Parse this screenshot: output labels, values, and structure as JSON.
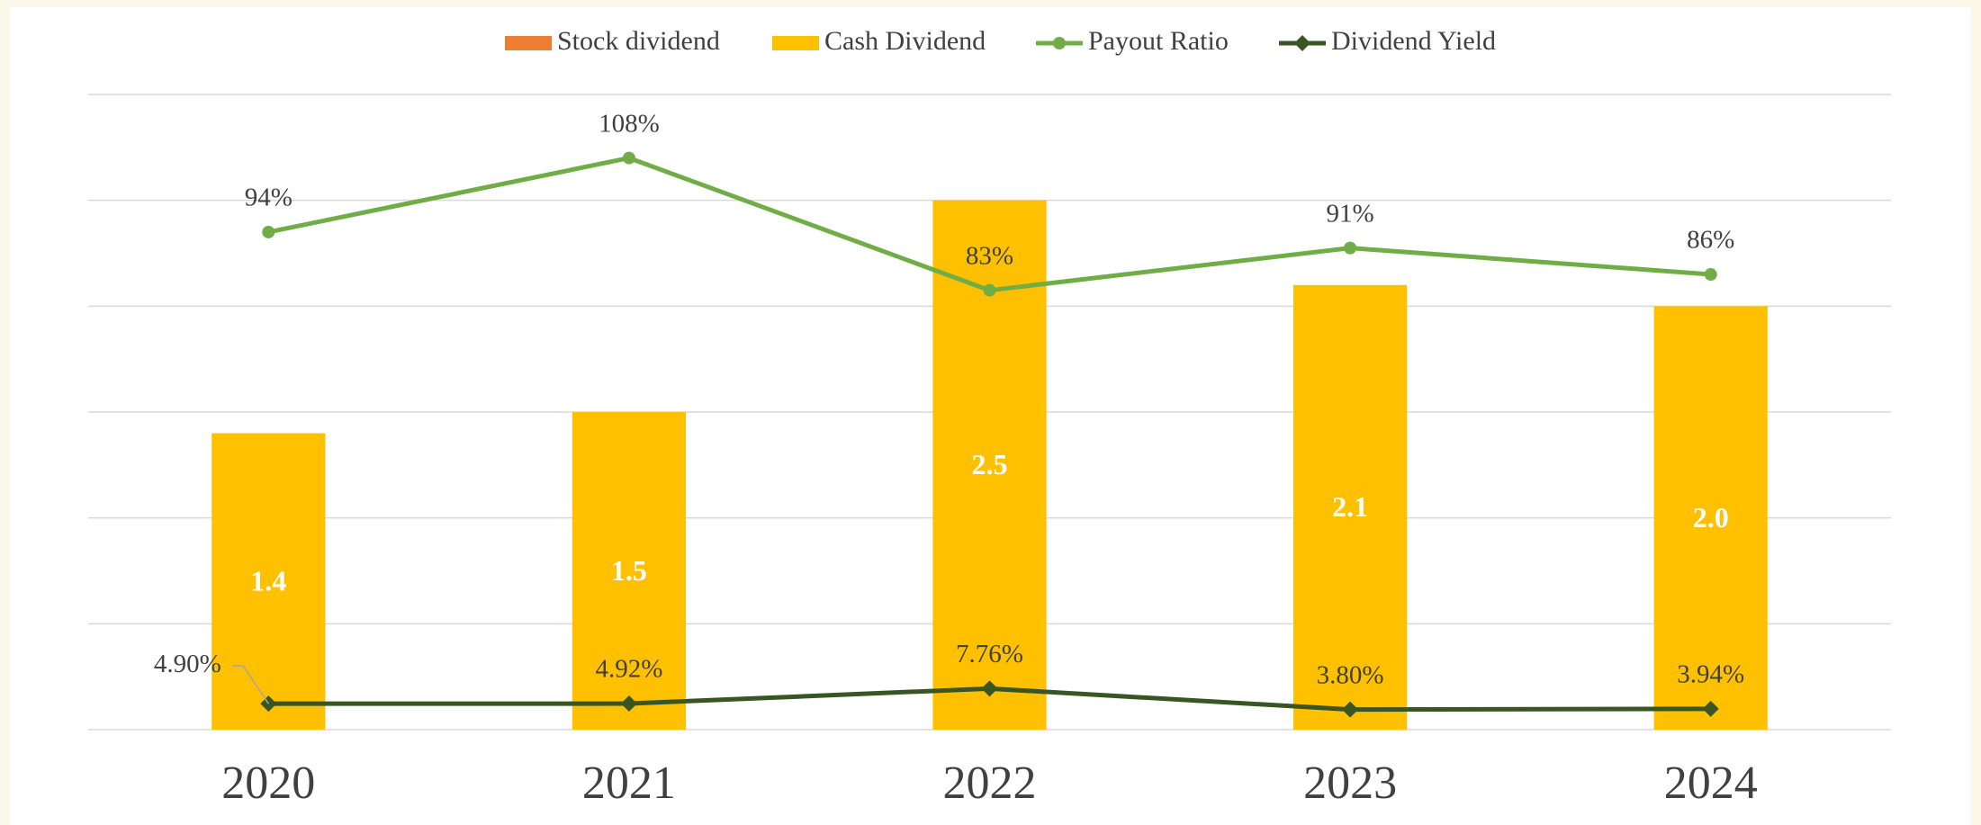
{
  "chart_data": {
    "type": "bar",
    "categories": [
      "2020",
      "2021",
      "2022",
      "2023",
      "2024"
    ],
    "series": [
      {
        "name": "Stock dividend",
        "color": "#ed7d31",
        "values": [
          0,
          0,
          0,
          0,
          0
        ]
      },
      {
        "name": "Cash Dividend",
        "color": "#ffc000",
        "values": [
          1.4,
          1.5,
          2.5,
          2.1,
          2.0
        ],
        "value_labels": [
          "1.4",
          "1.5",
          "2.5",
          "2.1",
          "2.0"
        ]
      },
      {
        "name": "Payout Ratio",
        "type": "line",
        "axis": "y2",
        "color": "#70ad47",
        "values": [
          94,
          108,
          83,
          91,
          86
        ],
        "value_labels": [
          "94%",
          "108%",
          "83%",
          "91%",
          "86%"
        ]
      },
      {
        "name": "Dividend Yield",
        "type": "line",
        "axis": "y2",
        "color": "#375623",
        "values": [
          4.9,
          4.92,
          7.76,
          3.8,
          3.94
        ],
        "value_labels": [
          "4.90%",
          "4.92%",
          "7.76%",
          "3.80%",
          "3.94%"
        ]
      }
    ],
    "ylim": [
      0,
      3
    ],
    "yticks": [
      0,
      0.5,
      1,
      1.5,
      2,
      2.5,
      3
    ],
    "y2lim": [
      0,
      120
    ],
    "grid": true,
    "legend": "top"
  }
}
